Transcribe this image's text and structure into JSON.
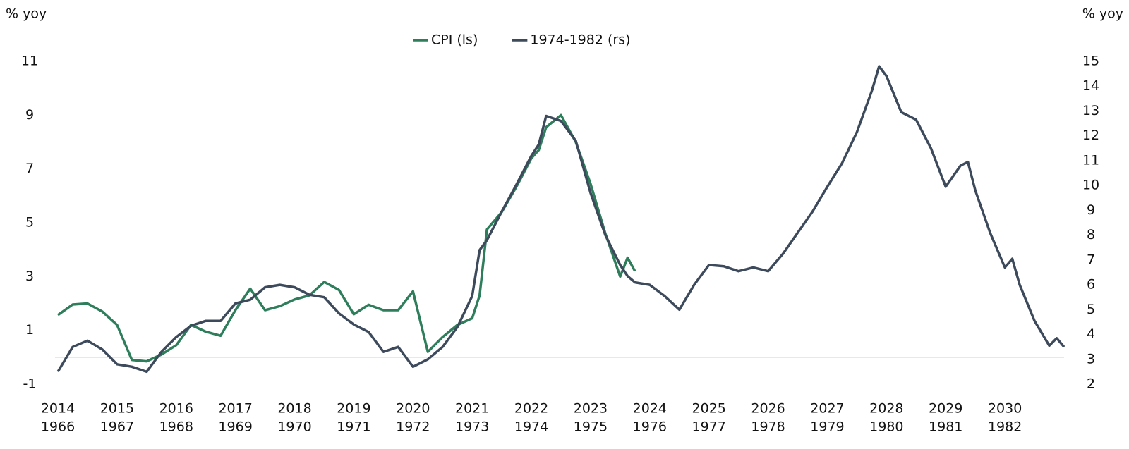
{
  "chart_data": {
    "type": "line",
    "y_label": "% yoy",
    "y2_label": "% yoy",
    "x": [
      2014,
      2014.25,
      2014.5,
      2014.75,
      2015,
      2015.25,
      2015.5,
      2015.75,
      2016,
      2016.25,
      2016.5,
      2016.75,
      2017,
      2017.25,
      2017.5,
      2017.75,
      2018,
      2018.25,
      2018.5,
      2018.75,
      2019,
      2019.25,
      2019.5,
      2019.75,
      2020,
      2020.25,
      2020.5,
      2020.75,
      2021,
      2021.125,
      2021.25,
      2021.5,
      2021.75,
      2022,
      2022.125,
      2022.25,
      2022.5,
      2022.75,
      2023,
      2023.25,
      2023.5,
      2023.625,
      2023.75,
      2024,
      2024.25,
      2024.5,
      2024.75,
      2025,
      2025.25,
      2025.5,
      2025.75,
      2026,
      2026.25,
      2026.5,
      2026.75,
      2027,
      2027.25,
      2027.5,
      2027.75,
      2027.875,
      2028,
      2028.25,
      2028.5,
      2028.75,
      2029,
      2029.25,
      2029.375,
      2029.5,
      2029.75,
      2030,
      2030.125,
      2030.25,
      2030.5,
      2030.75,
      2030.875,
      2031
    ],
    "series": [
      {
        "name": "CPI (ls)",
        "color": "#2e7d5b",
        "axis": "y",
        "values": [
          1.57,
          1.96,
          2.0,
          1.7,
          1.2,
          -0.1,
          -0.15,
          0.1,
          0.45,
          1.2,
          0.95,
          0.8,
          1.75,
          2.55,
          1.75,
          1.9,
          2.15,
          2.3,
          2.8,
          2.5,
          1.6,
          1.95,
          1.75,
          1.75,
          2.45,
          0.2,
          0.75,
          1.2,
          1.45,
          2.3,
          4.75,
          5.4,
          6.35,
          7.4,
          7.7,
          8.55,
          9.0,
          8.0,
          6.45,
          4.6,
          3.0,
          3.7,
          3.2,
          null,
          null,
          null,
          null,
          null,
          null,
          null,
          null,
          null,
          null,
          null,
          null,
          null,
          null,
          null,
          null,
          null,
          null,
          null,
          null,
          null,
          null,
          null,
          null,
          null,
          null,
          null,
          null,
          null,
          null,
          null,
          null,
          null
        ]
      },
      {
        "name": "1974-1982 (rs)",
        "color": "#3d4a5c",
        "axis": "y2",
        "values": [
          2.5,
          3.5,
          3.75,
          3.4,
          2.8,
          2.7,
          2.5,
          3.3,
          3.9,
          4.35,
          4.55,
          4.55,
          5.25,
          5.4,
          5.9,
          6.0,
          5.9,
          5.6,
          5.5,
          4.85,
          4.4,
          4.1,
          3.3,
          3.5,
          2.7,
          3.0,
          3.5,
          4.3,
          5.55,
          7.4,
          7.8,
          8.95,
          10.05,
          11.2,
          11.65,
          12.8,
          12.6,
          11.8,
          9.7,
          8.0,
          6.8,
          6.35,
          6.1,
          6.0,
          5.55,
          5.0,
          6.0,
          6.8,
          6.75,
          6.55,
          6.7,
          6.55,
          7.25,
          8.1,
          8.95,
          9.95,
          10.9,
          12.15,
          13.8,
          14.8,
          14.4,
          12.95,
          12.65,
          11.5,
          9.95,
          10.8,
          10.95,
          9.8,
          8.1,
          6.7,
          7.05,
          6.0,
          4.55,
          3.55,
          3.85,
          3.5
        ]
      }
    ],
    "xlim": [
      2014,
      2031
    ],
    "xticks": [
      2014,
      2015,
      2016,
      2017,
      2018,
      2019,
      2020,
      2021,
      2022,
      2023,
      2024,
      2025,
      2026,
      2027,
      2028,
      2029,
      2030
    ],
    "x2_labels": [
      "1966",
      "1967",
      "1968",
      "1969",
      "1970",
      "1971",
      "1972",
      "1973",
      "1974",
      "1975",
      "1976",
      "1977",
      "1978",
      "1979",
      "1980",
      "1981",
      "1982"
    ],
    "ylim": [
      -1,
      11
    ],
    "yticks": [
      -1,
      1,
      3,
      5,
      7,
      9,
      11
    ],
    "y2lim": [
      2,
      15
    ],
    "y2ticks": [
      2,
      3,
      4,
      5,
      6,
      7,
      8,
      9,
      10,
      11,
      12,
      13,
      14,
      15
    ],
    "legend": "top",
    "grid": false
  }
}
